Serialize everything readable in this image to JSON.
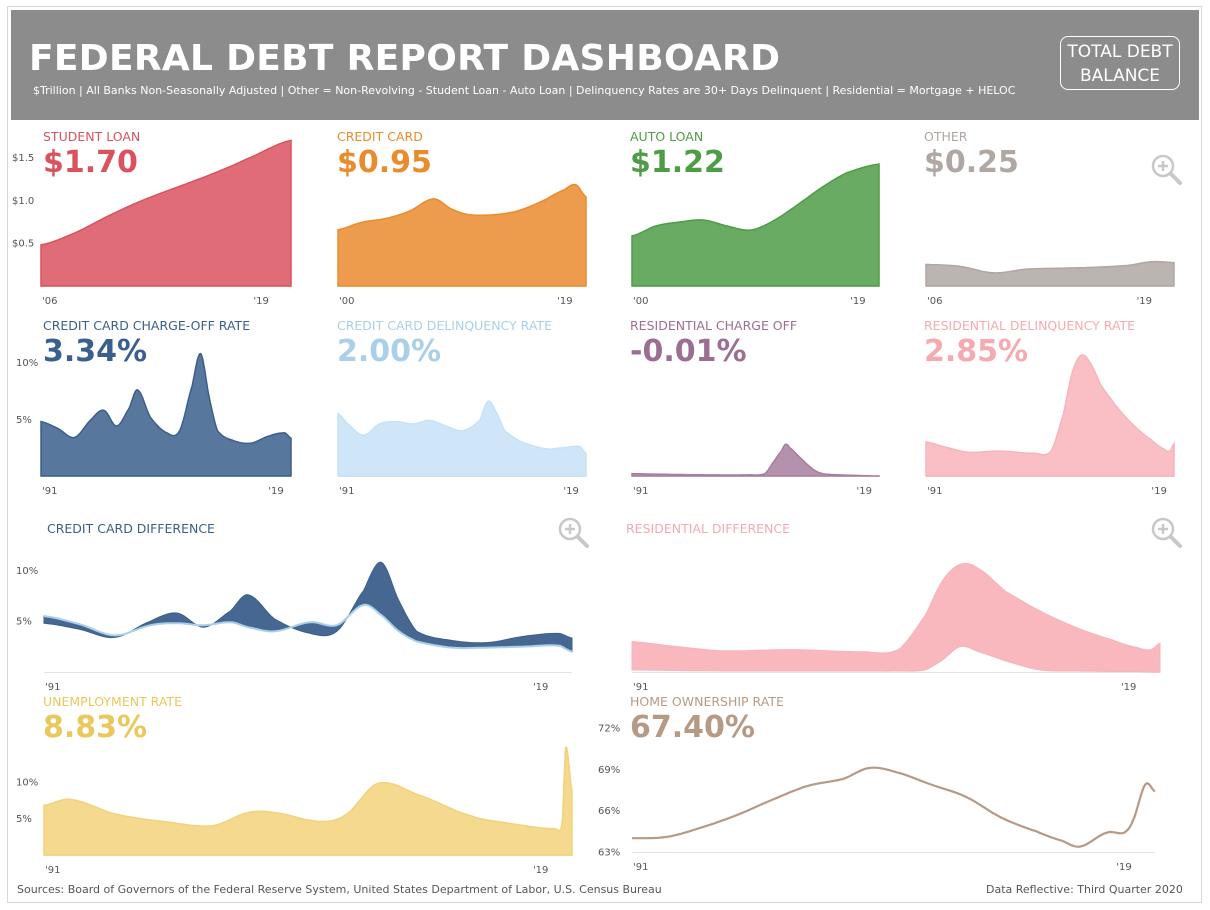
{
  "header": {
    "title": "FEDERAL DEBT REPORT DASHBOARD",
    "subtitle": "$Trillion | All Banks Non-Seasonally Adjusted | Other = Non-Revolving - Student Loan - Auto Loan | Delinquency Rates are 30+ Days Delinquent | Residential = Mortgage + HELOC",
    "total_button_line1": "TOTAL DEBT",
    "total_button_line2": "BALANCE"
  },
  "colors": {
    "header_bg": "#8c8c8c",
    "student": "#d9525e",
    "credit": "#ea8b2e",
    "auto": "#4f9c46",
    "other": "#b0a7a2",
    "cc_charge": "#3b5f8c",
    "cc_delinq": "#a9cfe9",
    "res_charge": "#9c6f92",
    "res_delinq": "#f6aab0",
    "unemployment": "#e9c85c",
    "home": "#b79a86"
  },
  "panels": {
    "student": {
      "title": "STUDENT LOAN",
      "value": "$1.70"
    },
    "credit": {
      "title": "CREDIT CARD",
      "value": "$0.95"
    },
    "auto": {
      "title": "AUTO LOAN",
      "value": "$1.22"
    },
    "other": {
      "title": "OTHER",
      "value": "$0.25"
    },
    "cc_charge": {
      "title": "CREDIT CARD CHARGE-OFF RATE",
      "value": "3.34%"
    },
    "cc_delinq": {
      "title": "CREDIT CARD DELINQUENCY RATE",
      "value": "2.00%"
    },
    "res_charge": {
      "title": "RESIDENTIAL CHARGE OFF",
      "value": "-0.01%"
    },
    "res_delinq": {
      "title": "RESIDENTIAL DELINQUENCY RATE",
      "value": "2.85%"
    },
    "cc_diff": {
      "title": "CREDIT CARD DIFFERENCE"
    },
    "res_diff": {
      "title": "RESIDENTIAL DIFFERENCE"
    },
    "unemployment": {
      "title": "UNEMPLOYMENT RATE",
      "value": "8.83%"
    },
    "home": {
      "title": "HOME OWNERSHIP RATE",
      "value": "67.40%"
    }
  },
  "icons": {
    "zoom": "zoom-in-icon"
  },
  "footer": {
    "sources": "Sources: Board of Governors of the Federal Reserve System, United States Department of Labor, U.S. Census Bureau",
    "reflective": "Data Reflective: Third Quarter 2020"
  },
  "chart_data": [
    {
      "id": "student",
      "type": "area",
      "xticks": [
        "'06",
        "'19"
      ],
      "yticks": [
        "$0.5",
        "$1.0",
        "$1.5"
      ],
      "ytick_values": [
        0.5,
        1.0,
        1.5
      ],
      "ylim": [
        0,
        1.75
      ],
      "x": [
        2006,
        2008,
        2010,
        2012,
        2014,
        2016,
        2018,
        2020.75
      ],
      "values": [
        0.48,
        0.62,
        0.82,
        1.0,
        1.15,
        1.3,
        1.47,
        1.7
      ]
    },
    {
      "id": "credit",
      "type": "area",
      "xticks": [
        "'00",
        "'19"
      ],
      "ylim": [
        0,
        1.6
      ],
      "x": [
        2000,
        2002,
        2004,
        2006,
        2008,
        2009.5,
        2011,
        2013,
        2015,
        2017,
        2019,
        2019.9,
        2020.75
      ],
      "values": [
        0.6,
        0.68,
        0.72,
        0.8,
        0.93,
        0.82,
        0.76,
        0.76,
        0.8,
        0.9,
        1.03,
        1.08,
        0.95
      ]
    },
    {
      "id": "auto",
      "type": "area",
      "xticks": [
        "'00",
        "'19"
      ],
      "ylim": [
        0,
        1.5
      ],
      "x": [
        2000,
        2002,
        2004,
        2006,
        2008,
        2010,
        2012,
        2014,
        2016,
        2018,
        2020.75
      ],
      "values": [
        0.5,
        0.6,
        0.64,
        0.66,
        0.6,
        0.56,
        0.66,
        0.82,
        0.99,
        1.13,
        1.22
      ]
    },
    {
      "id": "other",
      "type": "area",
      "xticks": [
        "'06",
        "'19"
      ],
      "ylim": [
        0,
        1.6
      ],
      "x": [
        2006,
        2008,
        2010,
        2012,
        2014,
        2016,
        2018,
        2019.5,
        2020.75
      ],
      "values": [
        0.23,
        0.21,
        0.14,
        0.18,
        0.19,
        0.2,
        0.22,
        0.26,
        0.25
      ]
    },
    {
      "id": "cc_charge",
      "type": "area",
      "xticks": [
        "'91",
        "'19"
      ],
      "yticks": [
        "5%",
        "10%"
      ],
      "ytick_values": [
        5,
        10
      ],
      "ylim": [
        0,
        12
      ],
      "x": [
        1991,
        1993,
        1995,
        1997,
        1998.5,
        2000,
        2001.5,
        2002.5,
        2004,
        2006,
        2007.5,
        2009,
        2010,
        2011,
        2012,
        2014,
        2016,
        2018,
        2020,
        2020.75
      ],
      "values": [
        4.8,
        4.2,
        3.4,
        5.0,
        5.8,
        4.4,
        6.0,
        7.6,
        5.2,
        3.8,
        4.0,
        8.0,
        10.8,
        7.0,
        4.0,
        3.1,
        2.9,
        3.5,
        3.8,
        3.34
      ]
    },
    {
      "id": "cc_delinq",
      "type": "area",
      "xticks": [
        "'91",
        "'19"
      ],
      "ylim": [
        0,
        12
      ],
      "x": [
        1991,
        1992,
        1994,
        1996,
        1998,
        2000,
        2002,
        2004,
        2006,
        2008,
        2009,
        2010,
        2011,
        2013,
        2016,
        2018,
        2020,
        2020.75
      ],
      "values": [
        5.5,
        4.7,
        3.6,
        4.6,
        4.8,
        4.6,
        4.9,
        4.4,
        4.0,
        4.9,
        6.6,
        5.6,
        4.0,
        3.0,
        2.4,
        2.5,
        2.6,
        2.0
      ]
    },
    {
      "id": "res_charge",
      "type": "area",
      "xticks": [
        "'91",
        "'19"
      ],
      "ylim": [
        0,
        12
      ],
      "x": [
        1991,
        1995,
        2000,
        2005,
        2007,
        2008,
        2009,
        2009.5,
        2010,
        2011,
        2012,
        2013,
        2014,
        2016,
        2018,
        2020.75
      ],
      "values": [
        0.2,
        0.15,
        0.1,
        0.1,
        0.2,
        1.2,
        2.2,
        2.8,
        2.5,
        1.8,
        1.1,
        0.5,
        0.2,
        0.1,
        0.05,
        -0.01
      ]
    },
    {
      "id": "res_delinq",
      "type": "area",
      "xticks": [
        "'91",
        "'19"
      ],
      "ylim": [
        0,
        12
      ],
      "x": [
        1991,
        1993,
        1996,
        2000,
        2004,
        2006,
        2007.5,
        2008.5,
        2009.5,
        2010.5,
        2012,
        2014,
        2016,
        2018,
        2019.5,
        2020.25,
        2020.75
      ],
      "values": [
        3.0,
        2.6,
        2.1,
        2.2,
        2.0,
        2.2,
        5.5,
        9.0,
        10.6,
        10.2,
        8.0,
        6.0,
        4.4,
        3.2,
        2.4,
        2.2,
        2.85
      ]
    },
    {
      "id": "cc_diff",
      "type": "area-band",
      "xticks": [
        "'91",
        "'19"
      ],
      "yticks": [
        "5%",
        "10%"
      ],
      "ytick_values": [
        5,
        10
      ],
      "ylim": [
        0,
        12
      ],
      "x": [
        1991,
        1993,
        1995,
        1997,
        1998.5,
        2000,
        2001.5,
        2002.5,
        2004,
        2006,
        2007.5,
        2009,
        2010,
        2011,
        2012,
        2014,
        2016,
        2018,
        2020,
        2020.75
      ],
      "series": [
        {
          "values": [
            4.8,
            4.2,
            3.4,
            5.0,
            5.8,
            4.4,
            6.0,
            7.6,
            5.2,
            3.8,
            4.0,
            8.0,
            10.8,
            7.0,
            4.0,
            3.1,
            2.9,
            3.5,
            3.8,
            3.34
          ]
        },
        {
          "values": [
            5.5,
            4.7,
            3.6,
            4.6,
            4.8,
            4.6,
            4.9,
            4.4,
            4.0,
            4.9,
            4.6,
            6.6,
            5.6,
            4.0,
            3.0,
            2.4,
            2.4,
            2.5,
            2.6,
            2.0
          ]
        }
      ]
    },
    {
      "id": "res_diff",
      "type": "area-band",
      "xticks": [
        "'91",
        "'19"
      ],
      "ylim": [
        0,
        12
      ],
      "x": [
        1991,
        1993,
        1996,
        2000,
        2004,
        2006,
        2007.5,
        2008.5,
        2009.5,
        2010.5,
        2012,
        2014,
        2016,
        2018,
        2019.5,
        2020.25,
        2020.75
      ],
      "series": [
        {
          "values": [
            3.0,
            2.6,
            2.1,
            2.2,
            2.0,
            2.2,
            5.5,
            9.0,
            10.6,
            10.2,
            8.0,
            6.0,
            4.4,
            3.2,
            2.4,
            2.2,
            2.85
          ]
        },
        {
          "values": [
            0.2,
            0.15,
            0.1,
            0.1,
            0.1,
            0.1,
            0.2,
            1.2,
            2.5,
            2.0,
            1.1,
            0.2,
            0.1,
            0.05,
            0.05,
            0.0,
            -0.01
          ]
        }
      ]
    },
    {
      "id": "unemployment",
      "type": "area",
      "xticks": [
        "'91",
        "'19"
      ],
      "yticks": [
        "5%",
        "10%"
      ],
      "ytick_values": [
        5,
        10
      ],
      "ylim": [
        0,
        16
      ],
      "x": [
        1991,
        1992.5,
        1995,
        1998,
        2000.5,
        2002.5,
        2004,
        2006.5,
        2008,
        2009.8,
        2012,
        2015,
        2017,
        2019.8,
        2020.2,
        2020.4,
        2020.75
      ],
      "values": [
        6.8,
        7.6,
        5.6,
        4.5,
        4.0,
        5.8,
        5.8,
        4.6,
        5.5,
        9.8,
        8.3,
        5.4,
        4.4,
        3.6,
        4.4,
        14.7,
        8.83
      ]
    },
    {
      "id": "home",
      "type": "line",
      "xticks": [
        "'91",
        "'19"
      ],
      "yticks": [
        "63%",
        "66%",
        "69%",
        "72%"
      ],
      "ytick_values": [
        63,
        66,
        69,
        72
      ],
      "ylim": [
        63,
        72
      ],
      "x": [
        1991,
        1993,
        1995,
        1997,
        1999,
        2001,
        2003,
        2004.5,
        2006,
        2008,
        2010,
        2012,
        2014,
        2015.5,
        2016.5,
        2018,
        2019,
        2019.5,
        2020.2,
        2020.75
      ],
      "values": [
        64.0,
        64.1,
        64.8,
        65.7,
        66.8,
        67.8,
        68.3,
        69.1,
        68.8,
        67.9,
        67.0,
        65.5,
        64.5,
        63.8,
        63.4,
        64.4,
        64.4,
        65.3,
        67.9,
        67.4
      ]
    }
  ]
}
